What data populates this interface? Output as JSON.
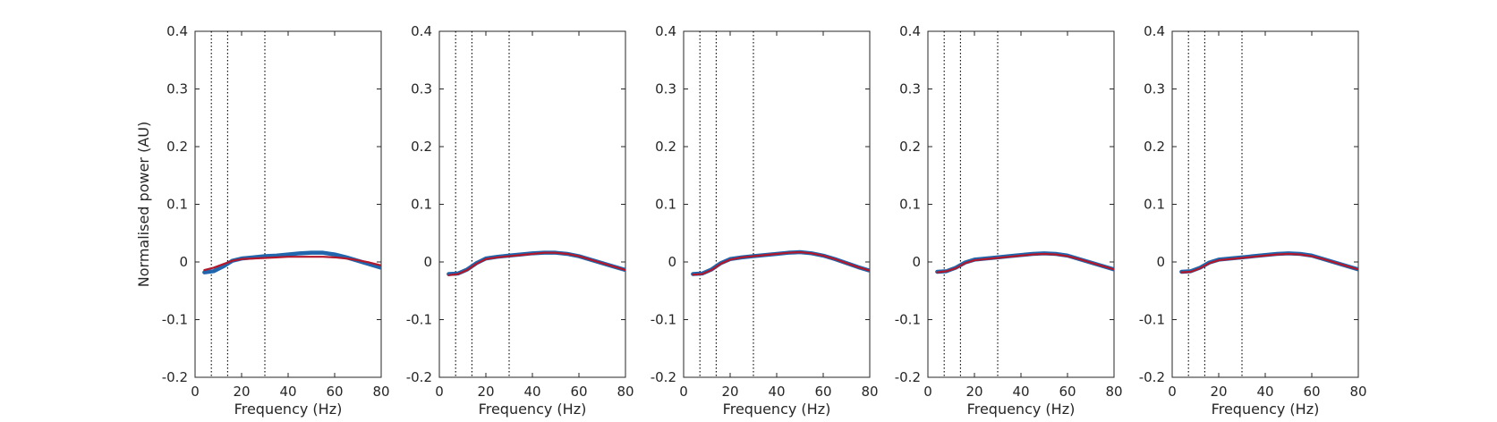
{
  "chart_data": [
    {
      "type": "line",
      "xlabel": "Frequency (Hz)",
      "ylabel": "Normalised power (AU)",
      "xlim": [
        0,
        80
      ],
      "ylim": [
        -0.2,
        0.4
      ],
      "xticks": [
        0,
        20,
        40,
        60,
        80
      ],
      "yticks": [
        -0.2,
        -0.1,
        0,
        0.1,
        0.2,
        0.3,
        0.4
      ],
      "vlines": [
        7,
        14,
        30
      ],
      "x": [
        4,
        8,
        12,
        16,
        20,
        25,
        30,
        35,
        40,
        45,
        50,
        55,
        60,
        65,
        70,
        75,
        80
      ],
      "series": [
        {
          "color": "#2166ac",
          "values": [
            -0.018,
            -0.016,
            -0.008,
            0.002,
            0.006,
            0.008,
            0.01,
            0.011,
            0.013,
            0.015,
            0.016,
            0.016,
            0.013,
            0.008,
            0.002,
            -0.004,
            -0.01
          ]
        },
        {
          "color": "#b2182b",
          "values": [
            -0.014,
            -0.01,
            -0.004,
            0.002,
            0.005,
            0.006,
            0.007,
            0.008,
            0.009,
            0.009,
            0.009,
            0.009,
            0.008,
            0.006,
            0.003,
            -0.001,
            -0.006
          ]
        }
      ]
    },
    {
      "type": "line",
      "xlabel": "Frequency (Hz)",
      "ylabel": "",
      "xlim": [
        0,
        80
      ],
      "ylim": [
        -0.2,
        0.4
      ],
      "xticks": [
        0,
        20,
        40,
        60,
        80
      ],
      "yticks": [
        -0.2,
        -0.1,
        0,
        0.1,
        0.2,
        0.3,
        0.4
      ],
      "vlines": [
        7,
        14,
        30
      ],
      "x": [
        4,
        8,
        12,
        16,
        20,
        25,
        30,
        35,
        40,
        45,
        50,
        55,
        60,
        65,
        70,
        75,
        80
      ],
      "series": [
        {
          "color": "#2166ac",
          "values": [
            -0.021,
            -0.02,
            -0.013,
            -0.002,
            0.006,
            0.009,
            0.011,
            0.013,
            0.015,
            0.016,
            0.016,
            0.014,
            0.01,
            0.004,
            -0.002,
            -0.008,
            -0.014
          ]
        },
        {
          "color": "#b2182b",
          "values": [
            -0.023,
            -0.021,
            -0.014,
            -0.003,
            0.005,
            0.008,
            0.01,
            0.012,
            0.014,
            0.016,
            0.016,
            0.014,
            0.01,
            0.004,
            -0.002,
            -0.008,
            -0.014
          ]
        }
      ]
    },
    {
      "type": "line",
      "xlabel": "Frequency (Hz)",
      "ylabel": "",
      "xlim": [
        0,
        80
      ],
      "ylim": [
        -0.2,
        0.4
      ],
      "xticks": [
        0,
        20,
        40,
        60,
        80
      ],
      "yticks": [
        -0.2,
        -0.1,
        0,
        0.1,
        0.2,
        0.3,
        0.4
      ],
      "vlines": [
        7,
        14,
        30
      ],
      "x": [
        4,
        8,
        12,
        16,
        20,
        25,
        30,
        35,
        40,
        45,
        50,
        55,
        60,
        65,
        70,
        75,
        80
      ],
      "series": [
        {
          "color": "#2166ac",
          "values": [
            -0.021,
            -0.02,
            -0.013,
            -0.002,
            0.005,
            0.008,
            0.01,
            0.012,
            0.014,
            0.016,
            0.017,
            0.015,
            0.011,
            0.005,
            -0.002,
            -0.009,
            -0.015
          ]
        },
        {
          "color": "#b2182b",
          "values": [
            -0.022,
            -0.021,
            -0.014,
            -0.003,
            0.004,
            0.008,
            0.01,
            0.012,
            0.014,
            0.016,
            0.017,
            0.015,
            0.011,
            0.005,
            -0.002,
            -0.009,
            -0.015
          ]
        }
      ]
    },
    {
      "type": "line",
      "xlabel": "Frequency (Hz)",
      "ylabel": "",
      "xlim": [
        0,
        80
      ],
      "ylim": [
        -0.2,
        0.4
      ],
      "xticks": [
        0,
        20,
        40,
        60,
        80
      ],
      "yticks": [
        -0.2,
        -0.1,
        0,
        0.1,
        0.2,
        0.3,
        0.4
      ],
      "vlines": [
        7,
        14,
        30
      ],
      "x": [
        4,
        8,
        12,
        16,
        20,
        25,
        30,
        35,
        40,
        45,
        50,
        55,
        60,
        65,
        70,
        75,
        80
      ],
      "series": [
        {
          "color": "#2166ac",
          "values": [
            -0.017,
            -0.016,
            -0.01,
            -0.001,
            0.004,
            0.006,
            0.008,
            0.01,
            0.012,
            0.014,
            0.015,
            0.014,
            0.011,
            0.005,
            -0.001,
            -0.007,
            -0.013
          ]
        },
        {
          "color": "#b2182b",
          "values": [
            -0.018,
            -0.016,
            -0.011,
            -0.002,
            0.003,
            0.005,
            0.007,
            0.009,
            0.011,
            0.013,
            0.014,
            0.013,
            0.01,
            0.005,
            -0.001,
            -0.007,
            -0.013
          ]
        }
      ]
    },
    {
      "type": "line",
      "xlabel": "Frequency (Hz)",
      "ylabel": "",
      "xlim": [
        0,
        80
      ],
      "ylim": [
        -0.2,
        0.4
      ],
      "xticks": [
        0,
        20,
        40,
        60,
        80
      ],
      "yticks": [
        -0.2,
        -0.1,
        0,
        0.1,
        0.2,
        0.3,
        0.4
      ],
      "vlines": [
        7,
        14,
        30
      ],
      "x": [
        4,
        8,
        12,
        16,
        20,
        25,
        30,
        35,
        40,
        45,
        50,
        55,
        60,
        65,
        70,
        75,
        80
      ],
      "series": [
        {
          "color": "#2166ac",
          "values": [
            -0.017,
            -0.016,
            -0.01,
            -0.001,
            0.004,
            0.006,
            0.008,
            0.01,
            0.012,
            0.014,
            0.015,
            0.014,
            0.011,
            0.005,
            -0.001,
            -0.007,
            -0.013
          ]
        },
        {
          "color": "#b2182b",
          "values": [
            -0.018,
            -0.017,
            -0.011,
            -0.002,
            0.003,
            0.005,
            0.007,
            0.009,
            0.011,
            0.013,
            0.014,
            0.013,
            0.01,
            0.005,
            -0.001,
            -0.007,
            -0.013
          ]
        }
      ]
    }
  ]
}
